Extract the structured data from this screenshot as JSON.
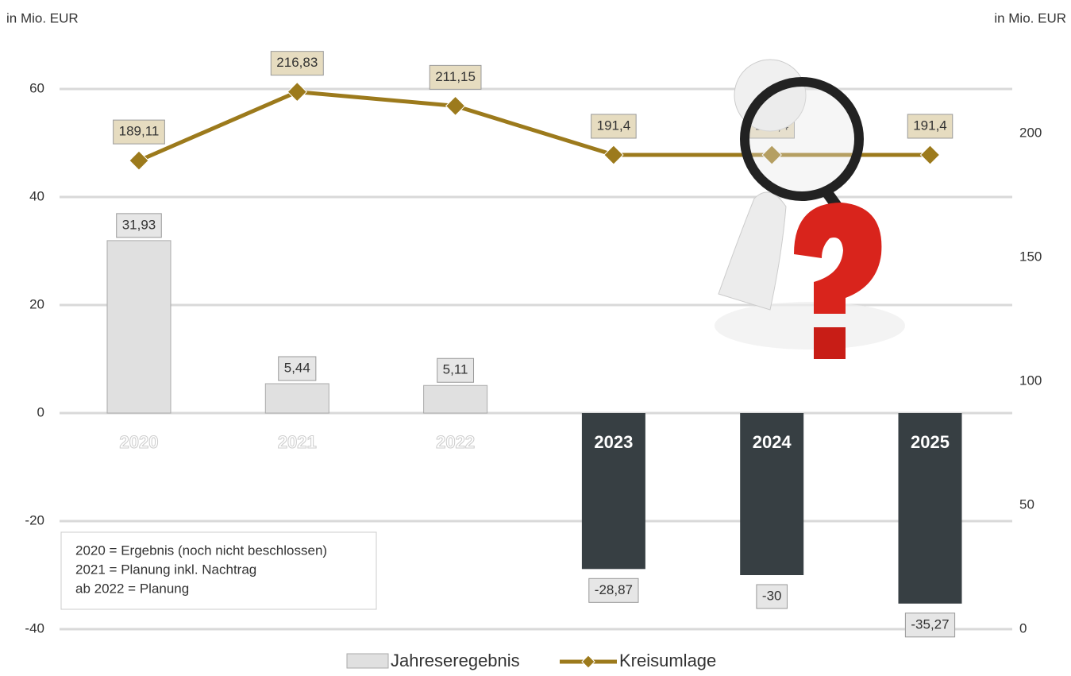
{
  "chart_data": {
    "type": "bar_line",
    "ylabel": "in Mio. EUR",
    "y2label": "in Mio. EUR",
    "categories": [
      "2020",
      "2021",
      "2022",
      "2023",
      "2024",
      "2025"
    ],
    "series": [
      {
        "name": "Jahreseregebnis",
        "type": "bar",
        "color": "#e0e0e0",
        "colors": [
          "#e0e0e0",
          "#e0e0e0",
          "#e0e0e0",
          "#373f43",
          "#373f43",
          "#373f43"
        ],
        "values": [
          31.93,
          5.44,
          5.11,
          -28.87,
          -30,
          -35.27
        ],
        "value_labels": [
          "31,93",
          "5,44",
          "5,11",
          "-28,87",
          "-30",
          "-35,27"
        ]
      },
      {
        "name": "Kreisumlage",
        "type": "line",
        "axis": "y2",
        "color": "#9c7a1c",
        "values": [
          189.11,
          216.83,
          211.15,
          191.4,
          191.4,
          191.4
        ],
        "value_labels": [
          "189,11",
          "216,83",
          "211,15",
          "191,4",
          "191,4",
          "191,4"
        ]
      }
    ],
    "ylim": [
      -40,
      60
    ],
    "yticks": [
      -40,
      -20,
      0,
      20,
      40,
      60
    ],
    "y2lim": [
      0,
      218
    ],
    "y2ticks": [
      0,
      50,
      100,
      150,
      200
    ],
    "grid": true,
    "annotations": [
      "2020 = Ergebnis (noch nicht beschlossen)",
      "2021 = Planung inkl. Nachtrag",
      "ab 2022 = Planung"
    ]
  }
}
